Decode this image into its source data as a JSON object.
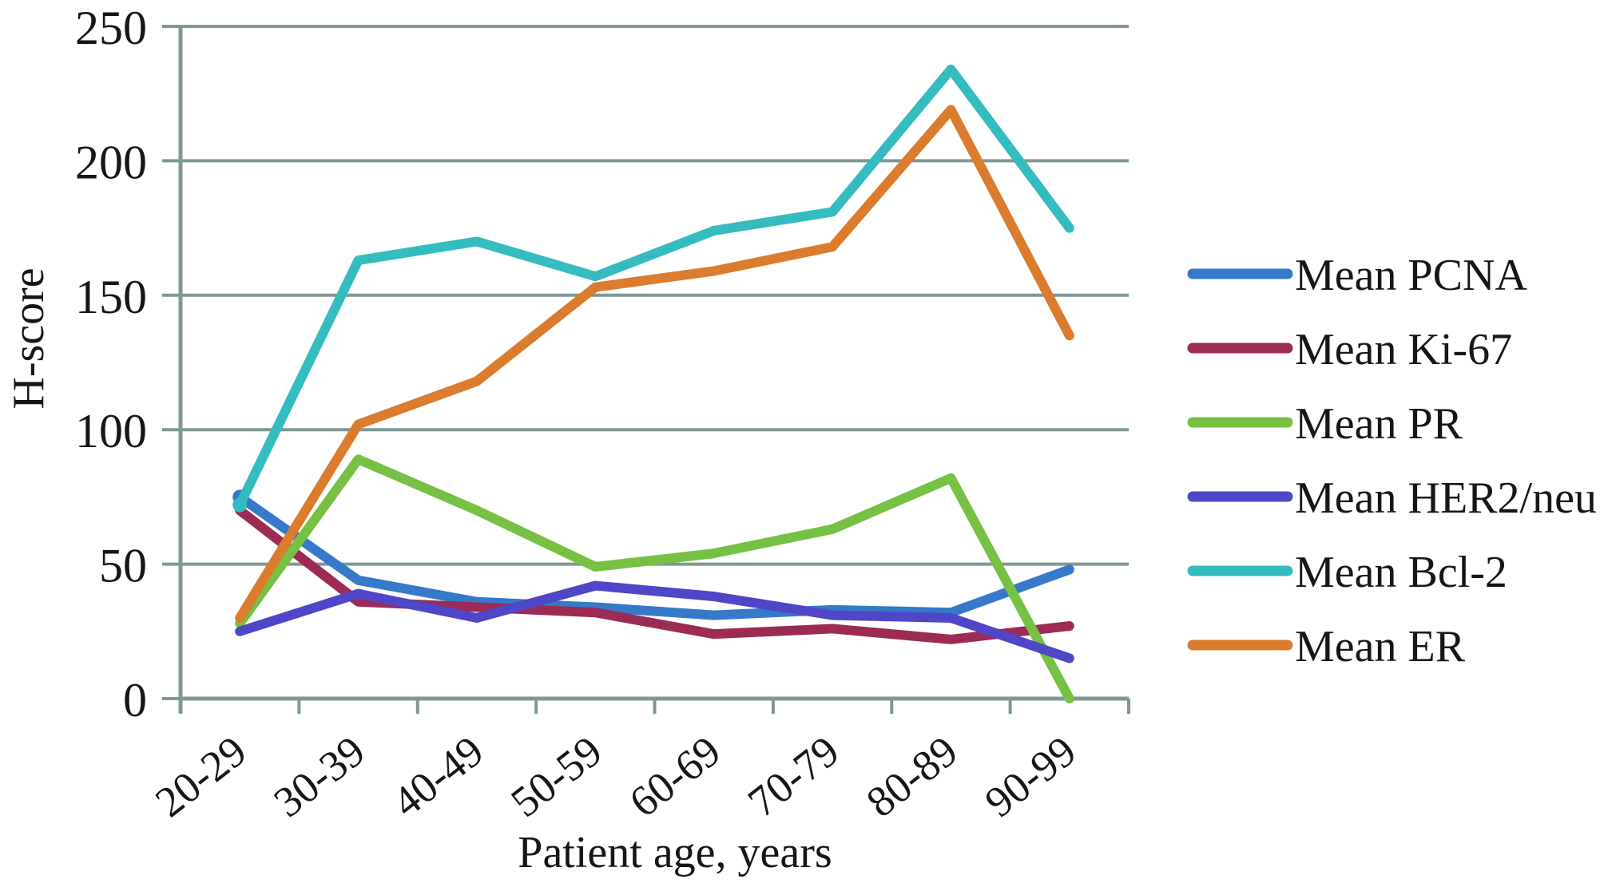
{
  "chart_data": {
    "type": "line",
    "title": "",
    "xlabel": "Patient age, years",
    "ylabel": "H-score",
    "categories": [
      "20-29",
      "30-39",
      "40-49",
      "50-59",
      "60-69",
      "70-79",
      "80-89",
      "90-99"
    ],
    "ylim": [
      0,
      250
    ],
    "yticks": [
      0,
      50,
      100,
      150,
      200,
      250
    ],
    "grid": "horizontal",
    "legend_position": "right",
    "axis_color": "#7F9894",
    "text_color": "#161616",
    "series": [
      {
        "name": "Mean PCNA",
        "color": "#3679C8",
        "values": [
          75,
          44,
          36,
          34,
          31,
          33,
          32,
          48
        ]
      },
      {
        "name": "Mean Ki-67",
        "color": "#9C2B55",
        "values": [
          70,
          36,
          34,
          32,
          24,
          26,
          22,
          27
        ]
      },
      {
        "name": "Mean PR",
        "color": "#76C043",
        "values": [
          28,
          89,
          70,
          49,
          54,
          63,
          82,
          0
        ]
      },
      {
        "name": "Mean HER2/neu",
        "color": "#4F46C8",
        "values": [
          25,
          39,
          30,
          42,
          38,
          31,
          30,
          15
        ]
      },
      {
        "name": "Mean Bcl-2",
        "color": "#35BCC0",
        "values": [
          72,
          163,
          170,
          157,
          174,
          181,
          234,
          175
        ]
      },
      {
        "name": "Mean ER",
        "color": "#DB7C2E",
        "values": [
          30,
          102,
          118,
          153,
          159,
          168,
          219,
          135
        ]
      }
    ]
  }
}
